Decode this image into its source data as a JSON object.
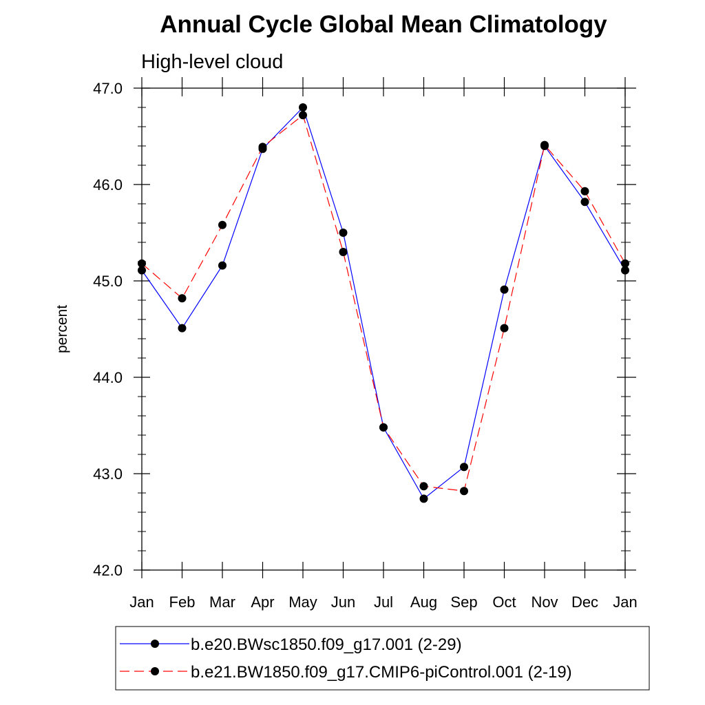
{
  "chart_data": {
    "type": "line",
    "title": "Annual Cycle Global Mean Climatology",
    "subtitle": "High-level cloud",
    "xlabel": "",
    "ylabel": "percent",
    "categories": [
      "Jan",
      "Feb",
      "Mar",
      "Apr",
      "May",
      "Jun",
      "Jul",
      "Aug",
      "Sep",
      "Oct",
      "Nov",
      "Dec",
      "Jan"
    ],
    "ylim": [
      42.0,
      47.0
    ],
    "yticks": [
      "42.0",
      "43.0",
      "44.0",
      "45.0",
      "46.0",
      "47.0"
    ],
    "grid": false,
    "legend_position": "bottom",
    "series": [
      {
        "name": "b.e20.BWsc1850.f09_g17.001 (2-29)",
        "color": "#0000ff",
        "line_style": "solid",
        "values": [
          45.11,
          44.51,
          45.16,
          46.37,
          46.8,
          45.5,
          43.48,
          42.74,
          43.07,
          44.91,
          46.4,
          45.82,
          45.11
        ]
      },
      {
        "name": "b.e21.BW1850.f09_g17.CMIP6-piControl.001 (2-19)",
        "color": "#ff0000",
        "line_style": "dashed",
        "values": [
          45.18,
          44.82,
          45.58,
          46.39,
          46.72,
          45.3,
          43.48,
          42.87,
          42.82,
          44.51,
          46.41,
          45.93,
          45.18
        ]
      }
    ]
  }
}
